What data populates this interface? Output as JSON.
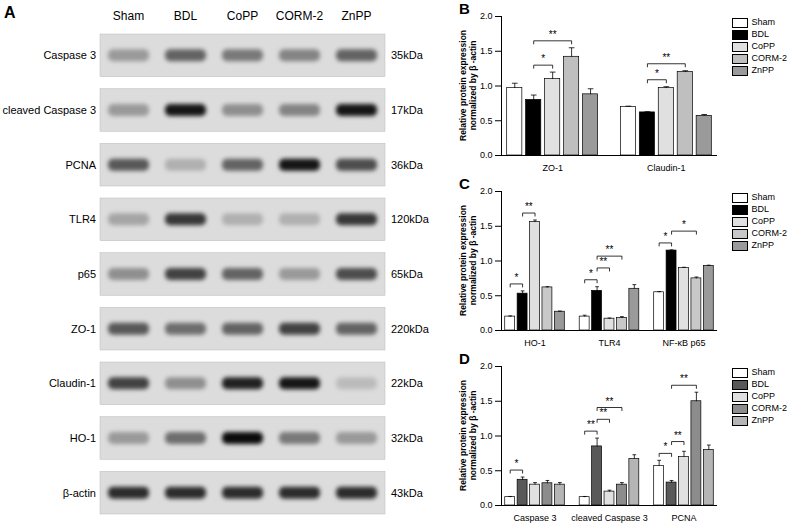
{
  "blot": {
    "title": "A",
    "lanes": [
      "Sham",
      "BDL",
      "CoPP",
      "CORM-2",
      "ZnPP"
    ],
    "rows": [
      {
        "protein": "Caspase 3",
        "size": "35kDa",
        "intensities": [
          0.3,
          0.55,
          0.45,
          0.4,
          0.55
        ]
      },
      {
        "protein": "cleaved Caspase 3",
        "size": "17kDa",
        "intensities": [
          0.3,
          0.9,
          0.35,
          0.4,
          0.9
        ]
      },
      {
        "protein": "PCNA",
        "size": "36kDa",
        "intensities": [
          0.6,
          0.2,
          0.55,
          0.9,
          0.65
        ]
      },
      {
        "protein": "TLR4",
        "size": "120kDa",
        "intensities": [
          0.25,
          0.75,
          0.2,
          0.2,
          0.75
        ]
      },
      {
        "protein": "p65",
        "size": "65kDa",
        "intensities": [
          0.35,
          0.7,
          0.55,
          0.3,
          0.65
        ]
      },
      {
        "protein": "ZO-1",
        "size": "220kDa",
        "intensities": [
          0.6,
          0.5,
          0.55,
          0.7,
          0.55
        ]
      },
      {
        "protein": "Claudin-1",
        "size": "22kDa",
        "intensities": [
          0.7,
          0.35,
          0.85,
          0.9,
          0.15
        ]
      },
      {
        "protein": "HO-1",
        "size": "32kDa",
        "intensities": [
          0.3,
          0.5,
          0.95,
          0.45,
          0.3
        ]
      },
      {
        "protein": "β-actin",
        "size": "43kDa",
        "intensities": [
          0.8,
          0.8,
          0.8,
          0.8,
          0.8
        ]
      }
    ]
  },
  "chart_data": [
    {
      "type": "bar",
      "title": "B",
      "y_label": "Relative protein expression\nnormalized by β -actin",
      "categories": [
        "ZO-1",
        "Claudin-1"
      ],
      "series": [
        {
          "name": "Sham",
          "color": "#ffffff",
          "values": [
            0.97,
            0.7
          ],
          "errors": [
            0.07,
            0.01
          ]
        },
        {
          "name": "BDL",
          "color": "#000000",
          "values": [
            0.8,
            0.62
          ],
          "errors": [
            0.07,
            0.01
          ]
        },
        {
          "name": "CoPP",
          "color": "#e0e0e0",
          "values": [
            1.1,
            0.97
          ],
          "errors": [
            0.1,
            0.02
          ]
        },
        {
          "name": "CORM-2",
          "color": "#bfbfbf",
          "values": [
            1.42,
            1.2
          ],
          "errors": [
            0.13,
            0.02
          ]
        },
        {
          "name": "ZnPP",
          "color": "#9a9a9a",
          "values": [
            0.88,
            0.57
          ],
          "errors": [
            0.08,
            0.02
          ]
        }
      ],
      "ylim": [
        0,
        2
      ],
      "yticks": [
        {
          "value": 0,
          "label": "0.0"
        },
        0.5,
        {
          "value": 1,
          "label": "1.0"
        },
        1.5,
        {
          "value": 2,
          "label": "2.0"
        }
      ],
      "legend": "top-right",
      "annotations": [
        {
          "category": "ZO-1",
          "from": "BDL",
          "to": "CoPP",
          "label": "*"
        },
        {
          "category": "ZO-1",
          "from": "BDL",
          "to": "CORM-2",
          "label": "**"
        },
        {
          "category": "Claudin-1",
          "from": "BDL",
          "to": "CoPP",
          "label": "*"
        },
        {
          "category": "Claudin-1",
          "from": "BDL",
          "to": "CORM-2",
          "label": "**"
        }
      ]
    },
    {
      "type": "bar",
      "title": "C",
      "y_label": "Relative protein expression\nnormalized by β -actin",
      "categories": [
        "HO-1",
        "TLR4",
        "NF-κB p65"
      ],
      "series": [
        {
          "name": "Sham",
          "color": "#ffffff",
          "values": [
            0.2,
            0.2,
            0.55
          ],
          "errors": [
            0.01,
            0.02,
            0.01
          ]
        },
        {
          "name": "BDL",
          "color": "#000000",
          "values": [
            0.53,
            0.57,
            1.15
          ],
          "errors": [
            0.04,
            0.06,
            0.01
          ]
        },
        {
          "name": "CoPP",
          "color": "#e0e0e0",
          "values": [
            1.56,
            0.17,
            0.9
          ],
          "errors": [
            0.03,
            0.01,
            0.01
          ]
        },
        {
          "name": "CORM-2",
          "color": "#c8c8c8",
          "values": [
            0.62,
            0.18,
            0.75
          ],
          "errors": [
            0.01,
            0.02,
            0.02
          ]
        },
        {
          "name": "ZnPP",
          "color": "#9a9a9a",
          "values": [
            0.27,
            0.6,
            0.93
          ],
          "errors": [
            0.01,
            0.06,
            0.01
          ]
        }
      ],
      "ylim": [
        0,
        2
      ],
      "yticks": [
        {
          "value": 0,
          "label": "0.0"
        },
        0.5,
        {
          "value": 1,
          "label": "1.0"
        },
        1.5,
        {
          "value": 2,
          "label": "2.0"
        }
      ],
      "legend": "top-right",
      "annotations": [
        {
          "category": "HO-1",
          "from": "Sham",
          "to": "BDL",
          "label": "*"
        },
        {
          "category": "HO-1",
          "from": "BDL",
          "to": "CoPP",
          "label": "**"
        },
        {
          "category": "TLR4",
          "from": "Sham",
          "to": "BDL",
          "label": "*"
        },
        {
          "category": "TLR4",
          "from": "BDL",
          "to": "CoPP",
          "label": "**"
        },
        {
          "category": "TLR4",
          "from": "BDL",
          "to": "CORM-2",
          "label": "**"
        },
        {
          "category": "NF-κB p65",
          "from": "Sham",
          "to": "BDL",
          "label": "*"
        },
        {
          "category": "NF-κB p65",
          "from": "BDL",
          "to": "CORM-2",
          "label": "*"
        }
      ]
    },
    {
      "type": "bar",
      "title": "D",
      "y_label": "Relative protein expression\nnormalized by β -actin",
      "categories": [
        "Caspase 3",
        "cleaved Caspase 3",
        "PCNA"
      ],
      "series": [
        {
          "name": "Sham",
          "color": "#ffffff",
          "values": [
            0.12,
            0.12,
            0.57
          ],
          "errors": [
            0.01,
            0.01,
            0.08
          ]
        },
        {
          "name": "BDL",
          "color": "#595959",
          "values": [
            0.37,
            0.85,
            0.33
          ],
          "errors": [
            0.04,
            0.12,
            0.03
          ]
        },
        {
          "name": "CoPP",
          "color": "#e0e0e0",
          "values": [
            0.3,
            0.2,
            0.7
          ],
          "errors": [
            0.03,
            0.02,
            0.08
          ]
        },
        {
          "name": "CORM-2",
          "color": "#8c8c8c",
          "values": [
            0.32,
            0.3,
            1.5
          ],
          "errors": [
            0.04,
            0.03,
            0.13
          ]
        },
        {
          "name": "ZnPP",
          "color": "#b5b5b5",
          "values": [
            0.3,
            0.67,
            0.8
          ],
          "errors": [
            0.03,
            0.06,
            0.07
          ]
        }
      ],
      "ylim": [
        0,
        2
      ],
      "yticks": [
        {
          "value": 0,
          "label": "0.0"
        },
        0.5,
        {
          "value": 1,
          "label": "1.0"
        },
        1.5,
        {
          "value": 2,
          "label": "2.0"
        }
      ],
      "legend": "top-right",
      "annotations": [
        {
          "category": "Caspase 3",
          "from": "Sham",
          "to": "BDL",
          "label": "*"
        },
        {
          "category": "cleaved Caspase 3",
          "from": "Sham",
          "to": "BDL",
          "label": "**"
        },
        {
          "category": "cleaved Caspase 3",
          "from": "BDL",
          "to": "CoPP",
          "label": "**"
        },
        {
          "category": "cleaved Caspase 3",
          "from": "BDL",
          "to": "CORM-2",
          "label": "**"
        },
        {
          "category": "PCNA",
          "from": "Sham",
          "to": "BDL",
          "label": "*"
        },
        {
          "category": "PCNA",
          "from": "BDL",
          "to": "CoPP",
          "label": "**"
        },
        {
          "category": "PCNA",
          "from": "BDL",
          "to": "CORM-2",
          "label": "**"
        }
      ]
    }
  ]
}
